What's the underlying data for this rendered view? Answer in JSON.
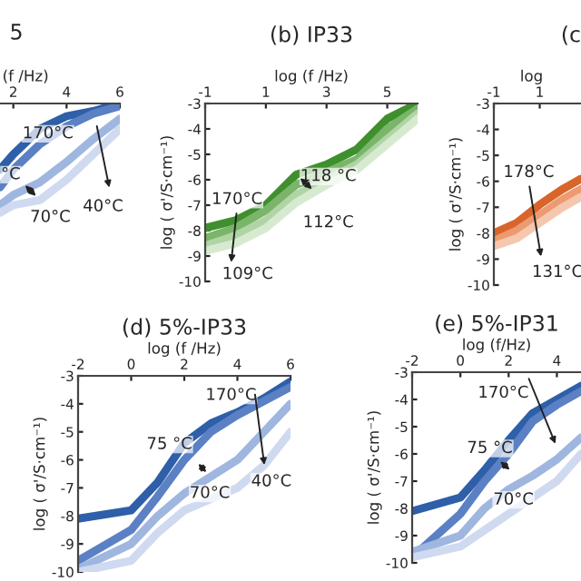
{
  "chart_data": [
    {
      "type": "line",
      "title": "5",
      "xlabel": "(f /Hz)",
      "xlim": [
        1.5,
        6
      ],
      "xticks": [
        2,
        4,
        6
      ],
      "ylim": [
        -10,
        -3
      ],
      "tick_labels": "x",
      "grid": false,
      "legend": false,
      "annotations": [
        "170°C",
        "°C",
        "70°C",
        "40°C"
      ],
      "series": [
        {
          "color": "#2e5fa8",
          "x": [
            1.5,
            2,
            3,
            4,
            5,
            6
          ],
          "values": [
            -5.6,
            -5.0,
            -4.0,
            -3.5,
            -3.3,
            -3.0
          ]
        },
        {
          "color": "#5b80c4",
          "x": [
            1.5,
            2,
            3,
            4,
            5,
            6
          ],
          "values": [
            -6.3,
            -5.6,
            -4.6,
            -3.9,
            -3.4,
            -3.1
          ]
        },
        {
          "color": "#9fb6df",
          "x": [
            1.5,
            2,
            3,
            4,
            5,
            6
          ],
          "values": [
            -7.0,
            -6.6,
            -6.1,
            -5.3,
            -4.4,
            -3.6
          ]
        },
        {
          "color": "#cfdaf0",
          "x": [
            1.5,
            2,
            3,
            4,
            5,
            6
          ],
          "values": [
            -7.3,
            -7.0,
            -6.8,
            -6.0,
            -5.0,
            -4.0
          ]
        }
      ]
    },
    {
      "type": "line",
      "title": "(b) IP33",
      "xlabel": "log (f /Hz)",
      "ylabel": "log ( σ'/S·cm⁻¹)",
      "xlim": [
        -1,
        6
      ],
      "xticks": [
        -1,
        1,
        3,
        5
      ],
      "ylim": [
        -10,
        -3
      ],
      "yticks": [
        -3,
        -4,
        -5,
        -6,
        -7,
        -8,
        -9,
        -10
      ],
      "grid": false,
      "legend": false,
      "annotations": [
        "170°C",
        "118 °C",
        "112°C",
        "109°C"
      ],
      "series": [
        {
          "color": "#3f8f2e",
          "x": [
            -1,
            0,
            1,
            2,
            3,
            4,
            5,
            6
          ],
          "values": [
            -7.9,
            -7.6,
            -7.0,
            -5.8,
            -5.4,
            -4.8,
            -3.6,
            -3.0
          ]
        },
        {
          "color": "#7ab56a",
          "x": [
            -1,
            0,
            1,
            2,
            3,
            4,
            5,
            6
          ],
          "values": [
            -8.3,
            -7.9,
            -7.2,
            -6.2,
            -5.7,
            -5.2,
            -4.0,
            -3.2
          ]
        },
        {
          "color": "#b0d4a5",
          "x": [
            -1,
            0,
            1,
            2,
            3,
            4,
            5,
            6
          ],
          "values": [
            -8.6,
            -8.2,
            -7.6,
            -6.6,
            -6.0,
            -5.4,
            -4.4,
            -3.4
          ]
        },
        {
          "color": "#d6eacf",
          "x": [
            -1,
            0,
            1,
            2,
            3,
            4,
            5,
            6
          ],
          "values": [
            -8.8,
            -8.5,
            -7.9,
            -6.9,
            -6.2,
            -5.6,
            -4.6,
            -3.6
          ]
        }
      ]
    },
    {
      "type": "line",
      "title": "(c",
      "xlabel": "log",
      "ylabel": "log ( σ'/S·cm⁻¹)",
      "xlim": [
        -1,
        2.8
      ],
      "xticks": [
        -1,
        1
      ],
      "ylim": [
        -10,
        -3
      ],
      "yticks": [
        -3,
        -4,
        -5,
        -6,
        -7,
        -8,
        -9,
        -10
      ],
      "grid": false,
      "legend": false,
      "annotations": [
        "178°C",
        "131°C"
      ],
      "series": [
        {
          "color": "#d9652b",
          "x": [
            -1,
            0,
            1,
            2,
            2.8
          ],
          "values": [
            -8.0,
            -7.6,
            -6.9,
            -6.3,
            -5.9
          ]
        },
        {
          "color": "#ec9a70",
          "x": [
            -1,
            0,
            1,
            2,
            2.8
          ],
          "values": [
            -8.3,
            -7.9,
            -7.3,
            -6.7,
            -6.3
          ]
        },
        {
          "color": "#f5c7ae",
          "x": [
            -1,
            0,
            1,
            2,
            2.8
          ],
          "values": [
            -8.5,
            -8.2,
            -7.6,
            -7.0,
            -6.6
          ]
        }
      ]
    },
    {
      "type": "line",
      "title": "(d) 5%-IP33",
      "xlabel": "log (f /Hz)",
      "ylabel": "log ( σ'/S·cm⁻¹)",
      "xlim": [
        -2,
        6
      ],
      "xticks": [
        -2,
        0,
        2,
        4,
        6
      ],
      "ylim": [
        -10,
        -3
      ],
      "yticks": [
        -3,
        -4,
        -5,
        -6,
        -7,
        -8,
        -9,
        -10
      ],
      "grid": false,
      "legend": false,
      "annotations": [
        "170°C",
        "75 °C",
        "70°C",
        "40°C"
      ],
      "series": [
        {
          "color": "#2e5fa8",
          "x": [
            -2,
            0,
            1,
            2,
            3,
            4,
            5,
            6
          ],
          "values": [
            -8.1,
            -7.8,
            -6.8,
            -5.4,
            -4.7,
            -4.3,
            -3.8,
            -3.2
          ]
        },
        {
          "color": "#5b80c4",
          "x": [
            -2,
            0,
            1,
            2,
            3,
            4,
            5,
            6
          ],
          "values": [
            -9.6,
            -8.5,
            -7.3,
            -6.0,
            -5.0,
            -4.4,
            -3.9,
            -3.4
          ]
        },
        {
          "color": "#9fb6df",
          "x": [
            -2,
            0,
            1,
            2,
            3,
            4,
            5,
            6
          ],
          "values": [
            -9.9,
            -9.0,
            -8.0,
            -7.2,
            -6.6,
            -6.0,
            -5.0,
            -4.0
          ]
        },
        {
          "color": "#cfdaf0",
          "x": [
            -2,
            0,
            1,
            2,
            3,
            4,
            5,
            6
          ],
          "values": [
            -10.0,
            -9.6,
            -8.6,
            -7.8,
            -7.4,
            -7.0,
            -6.2,
            -5.0
          ]
        }
      ]
    },
    {
      "type": "line",
      "title": "(e) 5%-IP31",
      "xlabel": "log (f/Hz)",
      "ylabel": "log ( σ'/S·cm⁻¹)",
      "xlim": [
        -2,
        5
      ],
      "xticks": [
        -2,
        0,
        2,
        4
      ],
      "ylim": [
        -10,
        -3
      ],
      "yticks": [
        -3,
        -4,
        -5,
        -6,
        -7,
        -8,
        -9,
        -10
      ],
      "grid": false,
      "legend": false,
      "annotations": [
        "170°C",
        "75 °C",
        "70°C"
      ],
      "series": [
        {
          "color": "#2e5fa8",
          "x": [
            -2,
            0,
            1,
            2,
            3,
            4,
            5
          ],
          "values": [
            -8.1,
            -7.6,
            -6.6,
            -5.5,
            -4.5,
            -4.0,
            -3.5
          ]
        },
        {
          "color": "#5b80c4",
          "x": [
            -2,
            0,
            1,
            2,
            3,
            4,
            5
          ],
          "values": [
            -9.8,
            -8.2,
            -7.0,
            -6.0,
            -4.8,
            -4.2,
            -3.7
          ]
        },
        {
          "color": "#9fb6df",
          "x": [
            -2,
            0,
            1,
            2,
            3,
            4,
            5
          ],
          "values": [
            -9.6,
            -9.0,
            -8.0,
            -7.3,
            -6.8,
            -6.2,
            -5.4
          ]
        },
        {
          "color": "#cfdaf0",
          "x": [
            -2,
            0,
            1,
            2,
            3,
            4,
            5
          ],
          "values": [
            -9.8,
            -9.4,
            -8.8,
            -8.2,
            -7.6,
            -7.0,
            -6.0
          ]
        }
      ]
    }
  ]
}
